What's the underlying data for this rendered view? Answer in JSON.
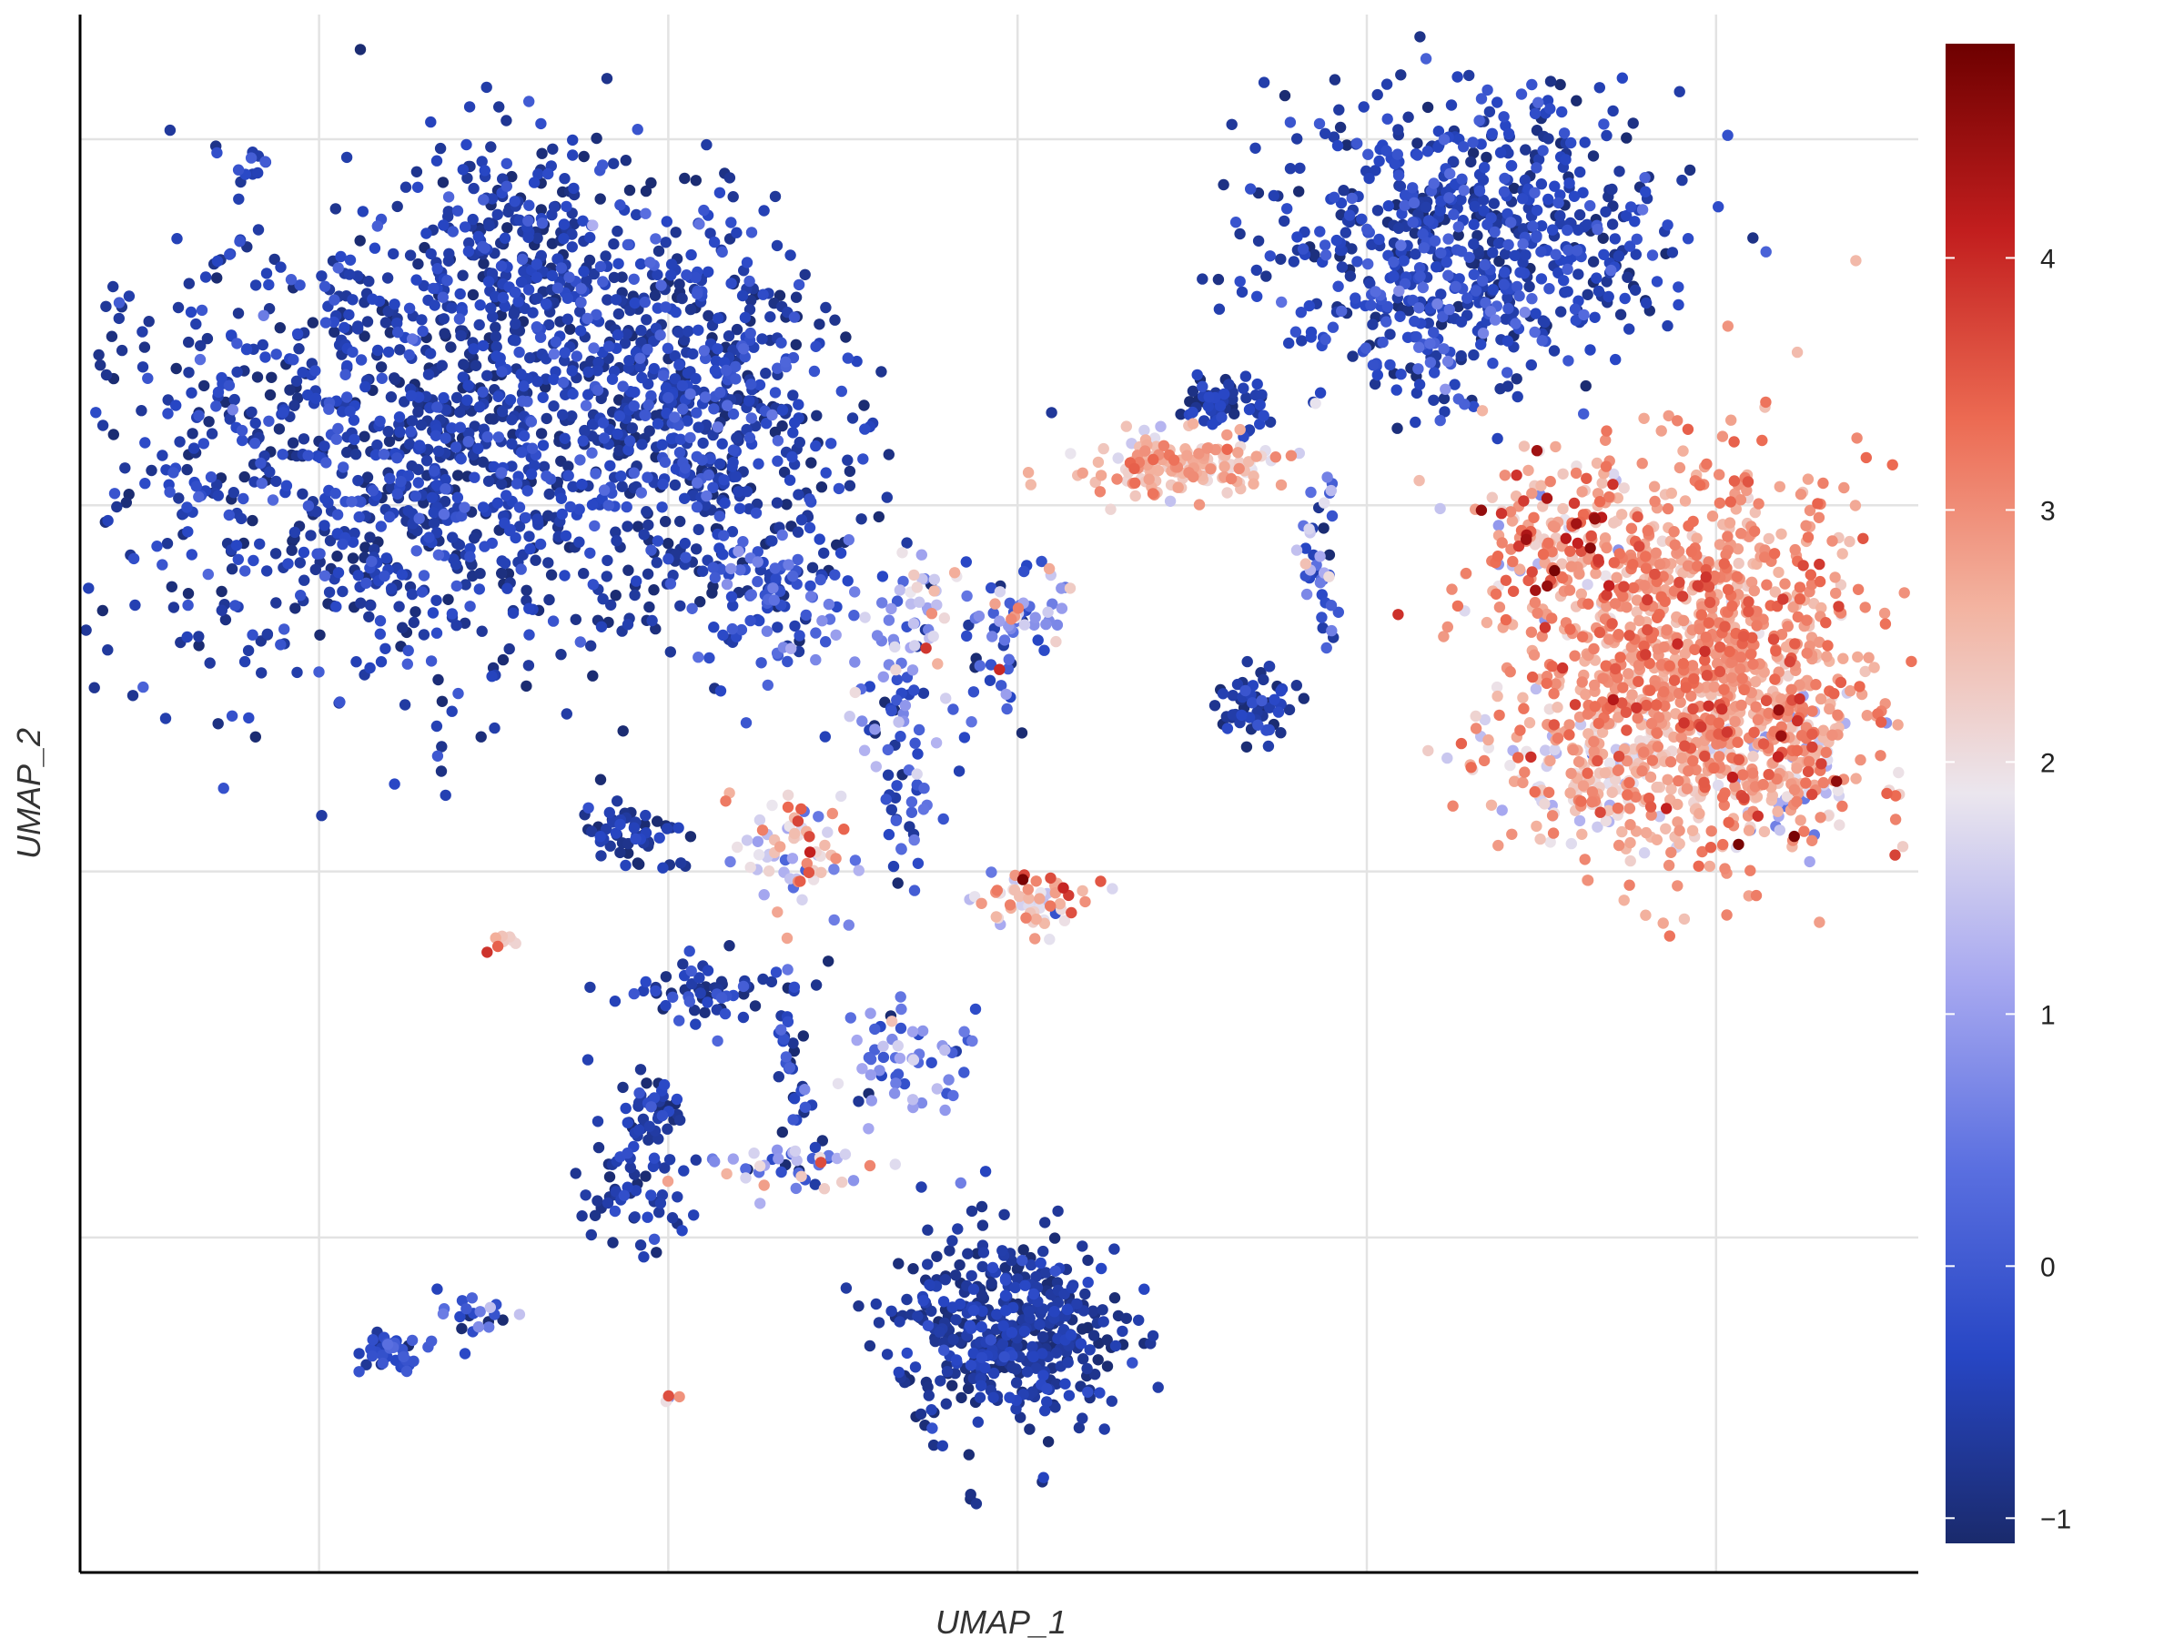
{
  "chart_data": {
    "type": "scatter",
    "title": "",
    "xlabel": "UMAP_1",
    "ylabel": "UMAP_2",
    "x_tick_labels_shown": false,
    "y_tick_labels_shown": false,
    "grid": true,
    "colorbar": {
      "placement": "right",
      "min": -1.1,
      "max": 4.85,
      "ticks": [
        -1,
        0,
        1,
        2,
        3,
        4
      ],
      "tick_labels": [
        "−1",
        "0",
        "1",
        "2",
        "3",
        "4"
      ],
      "colormap": [
        "#1a2a6c",
        "#2746c4",
        "#5a6fe0",
        "#a7a8f0",
        "#ebe6ee",
        "#f3b3a0",
        "#ec6a52",
        "#c21e1e",
        "#6e0000"
      ]
    },
    "clusters": [
      {
        "x": 0.19,
        "y": 0.72,
        "sx": 0.095,
        "sy": 0.072,
        "n": 1300,
        "mean": -0.6,
        "sd": 0.35
      },
      {
        "x": 0.235,
        "y": 0.85,
        "sx": 0.035,
        "sy": 0.04,
        "n": 250,
        "mean": -0.6,
        "sd": 0.3
      },
      {
        "x": 0.34,
        "y": 0.75,
        "sx": 0.035,
        "sy": 0.06,
        "n": 450,
        "mean": -0.5,
        "sd": 0.4
      },
      {
        "x": 0.38,
        "y": 0.63,
        "sx": 0.02,
        "sy": 0.025,
        "n": 80,
        "mean": 0.0,
        "sd": 0.6
      },
      {
        "x": 0.09,
        "y": 0.905,
        "sx": 0.006,
        "sy": 0.006,
        "n": 10,
        "mean": -0.4,
        "sd": 0.3
      },
      {
        "x": 0.44,
        "y": 0.57,
        "sx": 0.012,
        "sy": 0.035,
        "n": 55,
        "mean": 0.6,
        "sd": 1.0
      },
      {
        "x": 0.46,
        "y": 0.62,
        "sx": 0.008,
        "sy": 0.018,
        "n": 25,
        "mean": 1.0,
        "sd": 1.0
      },
      {
        "x": 0.49,
        "y": 0.57,
        "sx": 0.008,
        "sy": 0.03,
        "n": 30,
        "mean": 0.0,
        "sd": 0.8
      },
      {
        "x": 0.39,
        "y": 0.46,
        "sx": 0.015,
        "sy": 0.022,
        "n": 70,
        "mean": 2.0,
        "sd": 1.0
      },
      {
        "x": 0.45,
        "y": 0.49,
        "sx": 0.01,
        "sy": 0.02,
        "n": 30,
        "mean": -0.2,
        "sd": 0.5
      },
      {
        "x": 0.3,
        "y": 0.475,
        "sx": 0.015,
        "sy": 0.012,
        "n": 60,
        "mean": -0.7,
        "sd": 0.3
      },
      {
        "x": 0.345,
        "y": 0.375,
        "sx": 0.025,
        "sy": 0.01,
        "n": 60,
        "mean": -0.6,
        "sd": 0.4
      },
      {
        "x": 0.385,
        "y": 0.33,
        "sx": 0.006,
        "sy": 0.03,
        "n": 30,
        "mean": -0.5,
        "sd": 0.5
      },
      {
        "x": 0.45,
        "y": 0.33,
        "sx": 0.02,
        "sy": 0.015,
        "n": 60,
        "mean": 0.5,
        "sd": 0.7
      },
      {
        "x": 0.31,
        "y": 0.3,
        "sx": 0.008,
        "sy": 0.015,
        "n": 40,
        "mean": -0.7,
        "sd": 0.3
      },
      {
        "x": 0.3,
        "y": 0.24,
        "sx": 0.012,
        "sy": 0.025,
        "n": 60,
        "mean": -0.6,
        "sd": 0.3
      },
      {
        "x": 0.38,
        "y": 0.26,
        "sx": 0.03,
        "sy": 0.01,
        "n": 50,
        "mean": 0.9,
        "sd": 1.1
      },
      {
        "x": 0.23,
        "y": 0.405,
        "sx": 0.004,
        "sy": 0.004,
        "n": 8,
        "mean": 2.8,
        "sd": 0.8
      },
      {
        "x": 0.17,
        "y": 0.14,
        "sx": 0.011,
        "sy": 0.006,
        "n": 40,
        "mean": -0.4,
        "sd": 0.4
      },
      {
        "x": 0.215,
        "y": 0.165,
        "sx": 0.01,
        "sy": 0.008,
        "n": 20,
        "mean": 0.0,
        "sd": 0.6
      },
      {
        "x": 0.505,
        "y": 0.155,
        "sx": 0.03,
        "sy": 0.031,
        "n": 450,
        "mean": -0.7,
        "sd": 0.25
      },
      {
        "x": 0.485,
        "y": 0.045,
        "sx": 0.001,
        "sy": 0.002,
        "n": 3,
        "mean": -0.9,
        "sd": 0.1
      },
      {
        "x": 0.32,
        "y": 0.114,
        "sx": 0.003,
        "sy": 0.002,
        "n": 4,
        "mean": 2.0,
        "sd": 1.0
      },
      {
        "x": 0.515,
        "y": 0.615,
        "sx": 0.01,
        "sy": 0.015,
        "n": 45,
        "mean": 0.8,
        "sd": 1.0
      },
      {
        "x": 0.52,
        "y": 0.43,
        "sx": 0.015,
        "sy": 0.01,
        "n": 60,
        "mean": 2.3,
        "sd": 1.0
      },
      {
        "x": 0.6,
        "y": 0.71,
        "sx": 0.03,
        "sy": 0.01,
        "n": 150,
        "mean": 2.5,
        "sd": 0.4
      },
      {
        "x": 0.62,
        "y": 0.75,
        "sx": 0.012,
        "sy": 0.01,
        "n": 60,
        "mean": -0.7,
        "sd": 0.3
      },
      {
        "x": 0.64,
        "y": 0.555,
        "sx": 0.01,
        "sy": 0.012,
        "n": 60,
        "mean": -0.7,
        "sd": 0.3
      },
      {
        "x": 0.675,
        "y": 0.65,
        "sx": 0.006,
        "sy": 0.025,
        "n": 40,
        "mean": 0.5,
        "sd": 1.0
      },
      {
        "x": 0.76,
        "y": 0.86,
        "sx": 0.055,
        "sy": 0.045,
        "n": 650,
        "mean": -0.5,
        "sd": 0.35
      },
      {
        "x": 0.735,
        "y": 0.79,
        "sx": 0.03,
        "sy": 0.02,
        "n": 90,
        "mean": -0.3,
        "sd": 0.6
      },
      {
        "x": 0.88,
        "y": 0.585,
        "sx": 0.045,
        "sy": 0.06,
        "n": 1100,
        "mean": 2.9,
        "sd": 0.4
      },
      {
        "x": 0.83,
        "y": 0.52,
        "sx": 0.04,
        "sy": 0.025,
        "n": 180,
        "mean": 2.1,
        "sd": 0.55
      },
      {
        "x": 0.8,
        "y": 0.66,
        "sx": 0.025,
        "sy": 0.03,
        "n": 150,
        "mean": 2.8,
        "sd": 0.8
      },
      {
        "x": 0.935,
        "y": 0.52,
        "sx": 0.02,
        "sy": 0.025,
        "n": 120,
        "mean": 2.4,
        "sd": 1.2
      }
    ]
  }
}
